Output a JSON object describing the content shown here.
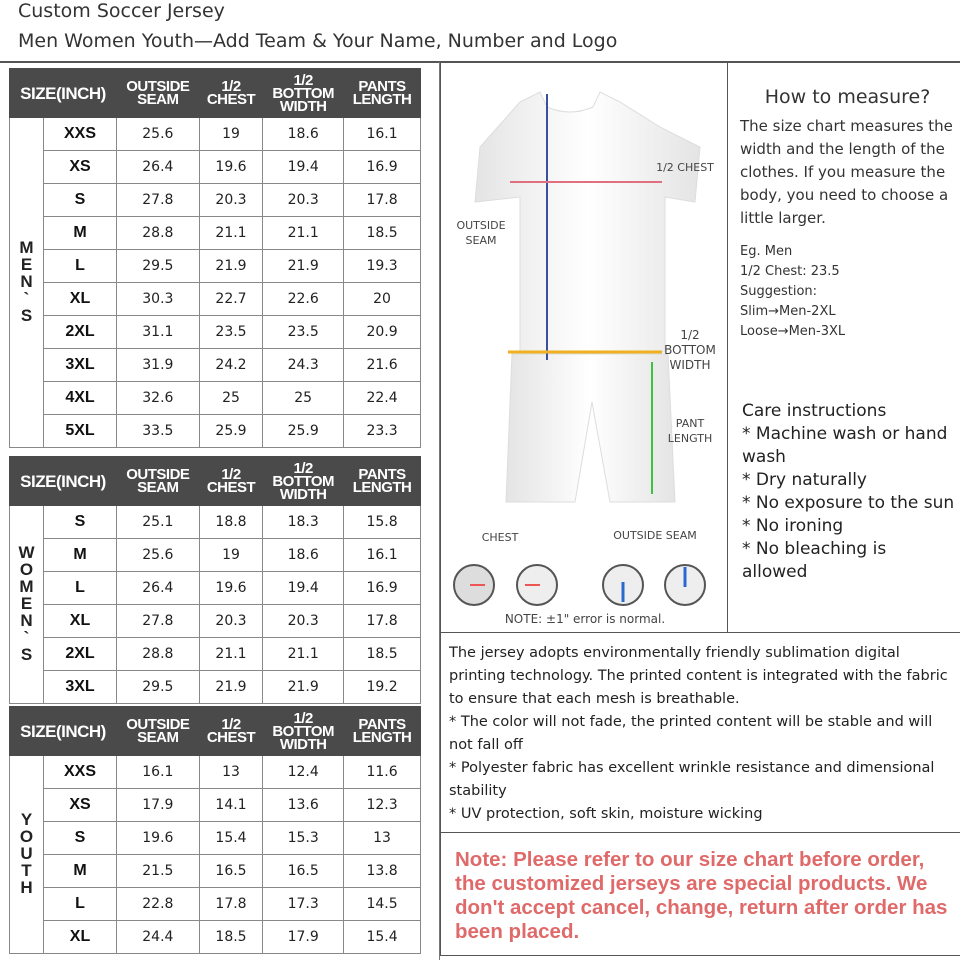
{
  "title": "Custom Soccer Jersey",
  "subtitle": "Men Women Youth—Add Team & Your Name, Number and Logo",
  "headers": [
    "SIZE(INCH)",
    "OUTSIDE SEAM",
    "1/2 CHEST",
    "1/2 BOTTOM WIDTH",
    "PANTS LENGTH"
  ],
  "tables": [
    {
      "group": "MEN`S",
      "rows": [
        [
          "XXS",
          "25.6",
          "19",
          "18.6",
          "16.1"
        ],
        [
          "XS",
          "26.4",
          "19.6",
          "19.4",
          "16.9"
        ],
        [
          "S",
          "27.8",
          "20.3",
          "20.3",
          "17.8"
        ],
        [
          "M",
          "28.8",
          "21.1",
          "21.1",
          "18.5"
        ],
        [
          "L",
          "29.5",
          "21.9",
          "21.9",
          "19.3"
        ],
        [
          "XL",
          "30.3",
          "22.7",
          "22.6",
          "20"
        ],
        [
          "2XL",
          "31.1",
          "23.5",
          "23.5",
          "20.9"
        ],
        [
          "3XL",
          "31.9",
          "24.2",
          "24.3",
          "21.6"
        ],
        [
          "4XL",
          "32.6",
          "25",
          "25",
          "22.4"
        ],
        [
          "5XL",
          "33.5",
          "25.9",
          "25.9",
          "23.3"
        ]
      ]
    },
    {
      "group": "WOMEN`S",
      "rows": [
        [
          "S",
          "25.1",
          "18.8",
          "18.3",
          "15.8"
        ],
        [
          "M",
          "25.6",
          "19",
          "18.6",
          "16.1"
        ],
        [
          "L",
          "26.4",
          "19.6",
          "19.4",
          "16.9"
        ],
        [
          "XL",
          "27.8",
          "20.3",
          "20.3",
          "17.8"
        ],
        [
          "2XL",
          "28.8",
          "21.1",
          "21.1",
          "18.5"
        ],
        [
          "3XL",
          "29.5",
          "21.9",
          "21.9",
          "19.2"
        ]
      ]
    },
    {
      "group": "YOUTH",
      "rows": [
        [
          "XXS",
          "16.1",
          "13",
          "12.4",
          "11.6"
        ],
        [
          "XS",
          "17.9",
          "14.1",
          "13.6",
          "12.3"
        ],
        [
          "S",
          "19.6",
          "15.4",
          "15.3",
          "13"
        ],
        [
          "M",
          "21.5",
          "16.5",
          "16.5",
          "13.8"
        ],
        [
          "L",
          "22.8",
          "17.8",
          "17.3",
          "14.5"
        ],
        [
          "XL",
          "24.4",
          "18.5",
          "17.9",
          "15.4"
        ]
      ]
    }
  ],
  "diagram": {
    "chest": "1/2 CHEST",
    "outside_seam": "OUTSIDE SEAM",
    "bottom": "1/2 BOTTOM WIDTH",
    "pant": "PANT LENGTH",
    "chest_caption": "CHEST",
    "seam_caption": "OUTSIDE SEAM",
    "note": "NOTE: ±1\" error is normal."
  },
  "howto": {
    "heading": "How to measure?",
    "text": "The size chart measures the width and the length of the clothes. If you measure the body, you need to choose a little larger.",
    "eg": "Eg. Men",
    "eg_chest": "1/2 Chest: 23.5",
    "suggestion": "Suggestion:",
    "slim": "Slim→Men-2XL",
    "loose": "Loose→Men-3XL"
  },
  "care": {
    "heading": "Care instructions",
    "items": [
      "* Machine wash or hand wash",
      "* Dry naturally",
      "* No exposure to the sun",
      "* No ironing",
      "* No bleaching is allowed"
    ]
  },
  "description": [
    "The jersey adopts environmentally friendly sublimation digital printing technology. The printed content is integrated with the fabric to ensure that each mesh is breathable.",
    "* The color will not fade, the printed content will be stable and will not fall off",
    "* Polyester fabric has excellent wrinkle resistance and dimensional stability",
    "* UV protection, soft skin, moisture wicking"
  ],
  "note": "Note: Please refer to our size chart before order, the customized jerseys are special products. We don't accept cancel, change, return after order has been placed.",
  "colors": {
    "header": "#4a4a4a",
    "note": "#e06a6a",
    "chest_line": "#e07080",
    "seam_line": "#3a4fa0",
    "bottom_line": "#f0b020",
    "pant_line": "#40c040"
  }
}
